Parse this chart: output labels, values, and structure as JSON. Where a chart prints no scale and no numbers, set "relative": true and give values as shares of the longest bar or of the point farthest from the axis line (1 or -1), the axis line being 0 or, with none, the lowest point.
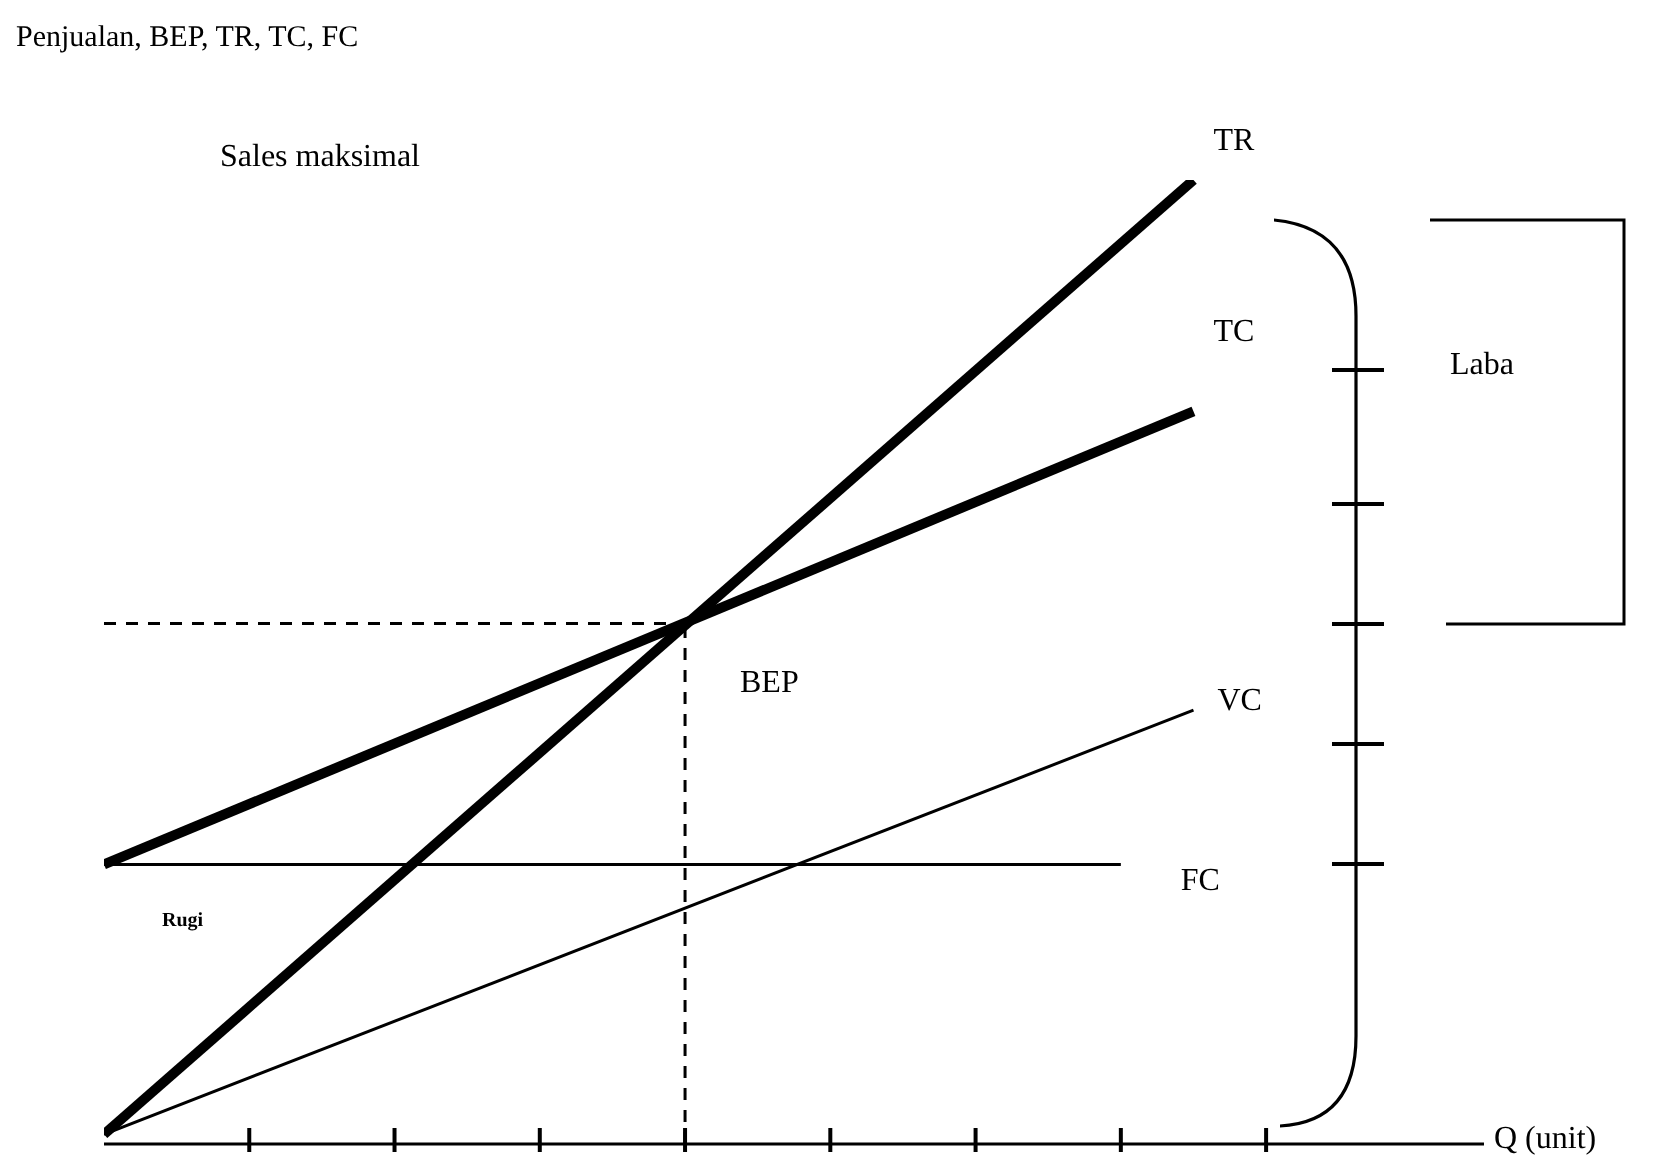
{
  "chart_data": {
    "type": "line",
    "relative": true,
    "ylabel": "Penjualan, BEP, TR, TC, FC",
    "xlabel": "Q (unit)",
    "categories": [
      null,
      null,
      null,
      null,
      null,
      null,
      null,
      null,
      null,
      null,
      null,
      null,
      null,
      null,
      null,
      null,
      null,
      null,
      null,
      null
    ],
    "grid": false,
    "legend": false,
    "marker": "none",
    "series": [
      {
        "name": "TR",
        "color": "#000000",
        "values": [
          0.01,
          null,
          null,
          null,
          null,
          null,
          null,
          null,
          null,
          null,
          null,
          null,
          null,
          null,
          null,
          1,
          null,
          null,
          null,
          null
        ]
      },
      {
        "name": "TC",
        "color": "#000000",
        "values": [
          0.29,
          null,
          null,
          null,
          null,
          null,
          null,
          null,
          null,
          null,
          null,
          null,
          null,
          null,
          null,
          0.76,
          null,
          null,
          null,
          null
        ]
      },
      {
        "name": "FC",
        "color": "#000000",
        "values": [
          0.29,
          null,
          null,
          null,
          null,
          null,
          null,
          null,
          null,
          null,
          null,
          null,
          null,
          null,
          0.29,
          null,
          null,
          null,
          null,
          null
        ]
      },
      {
        "name": "VC",
        "color": "#000000",
        "values": [
          0.01,
          null,
          null,
          null,
          null,
          null,
          null,
          null,
          null,
          null,
          null,
          null,
          null,
          null,
          null,
          0.45,
          null,
          null,
          null,
          null
        ]
      },
      {
        "color": "#000000",
        "line_style": "dashed",
        "values": [
          0.54,
          null,
          null,
          null,
          null,
          null,
          null,
          null,
          0.54,
          null,
          null,
          null,
          null,
          null,
          null,
          null,
          null,
          null,
          null,
          null
        ]
      }
    ],
    "annotations": [
      "Sales maksimal",
      "BEP",
      "Rugi",
      "Laba"
    ]
  }
}
